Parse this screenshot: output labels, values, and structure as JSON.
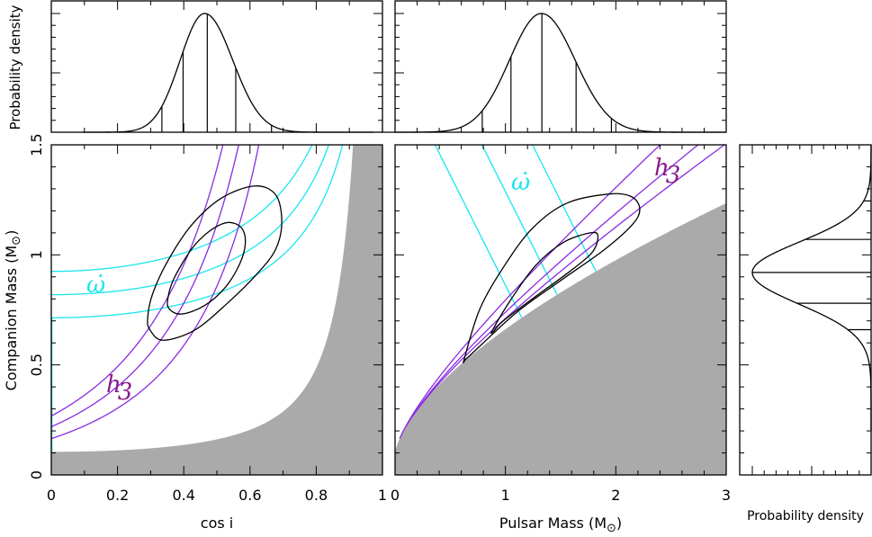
{
  "colors": {
    "omega_dot": "#19e6ef",
    "h3": "#8a2be2",
    "h3_label": "#8b1a8b",
    "excluded_region": "#aaaaaa",
    "contours": "#000000"
  },
  "labels": {
    "top_left_ylabel": "Probability density",
    "left_ylabel": "Companion Mass (M",
    "left_ylabel_sun": "⊙",
    "left_ylabel_close": ")",
    "left_xlabel": "cos i",
    "middle_xlabel": "Pulsar Mass (M",
    "middle_xlabel_sun": "⊙",
    "middle_xlabel_close": ")",
    "right_xlabel": "Probability density",
    "omega_dot": "ω̇",
    "h3": "h",
    "h3_sub": "3"
  },
  "chart_data": [
    {
      "type": "line",
      "panel": "top-left",
      "xlabel": "",
      "ylabel": "Probability density",
      "xlim": [
        0,
        1
      ],
      "distribution": {
        "peak": 0.463,
        "sigma_left": 0.074,
        "sigma_right": 0.085
      },
      "quantile_lines": [
        0.334,
        0.398,
        0.471,
        0.557,
        0.665
      ]
    },
    {
      "type": "line",
      "panel": "top-middle",
      "xlim": [
        0,
        3
      ],
      "distribution": {
        "peak": 1.326,
        "sigma_left": 0.29,
        "sigma_right": 0.306
      },
      "quantile_lines": [
        0.79,
        1.05,
        1.33,
        1.64,
        1.96
      ]
    },
    {
      "type": "line",
      "panel": "main-left",
      "xlabel": "cos i",
      "ylabel": "Companion Mass (M⊙)",
      "xlim": [
        0,
        1
      ],
      "ylim": [
        0,
        1.5
      ],
      "xticks": [
        "0",
        "0.2",
        "0.4",
        "0.6",
        "0.8",
        "1"
      ],
      "yticks": [
        "0",
        "0.5",
        "1",
        "1.5"
      ],
      "mass_function": 0.105,
      "omega_dot_total_masses": [
        2.745,
        2.287,
        1.862
      ],
      "h3_amplitudes": [
        0.268,
        0.219,
        0.165
      ],
      "contours": [
        {
          "level": "outer",
          "points": [
            [
              0.291,
              0.714
            ],
            [
              0.306,
              0.823
            ],
            [
              0.352,
              0.973
            ],
            [
              0.424,
              1.136
            ],
            [
              0.515,
              1.259
            ],
            [
              0.615,
              1.313
            ],
            [
              0.678,
              1.272
            ],
            [
              0.696,
              1.15
            ],
            [
              0.678,
              1.027
            ],
            [
              0.624,
              0.918
            ],
            [
              0.533,
              0.782
            ],
            [
              0.434,
              0.659
            ],
            [
              0.338,
              0.612
            ],
            [
              0.298,
              0.659
            ]
          ]
        },
        {
          "level": "inner",
          "points": [
            [
              0.352,
              0.802
            ],
            [
              0.37,
              0.891
            ],
            [
              0.424,
              1.027
            ],
            [
              0.479,
              1.109
            ],
            [
              0.533,
              1.147
            ],
            [
              0.574,
              1.123
            ],
            [
              0.586,
              1.054
            ],
            [
              0.569,
              0.959
            ],
            [
              0.524,
              0.85
            ],
            [
              0.461,
              0.768
            ],
            [
              0.393,
              0.731
            ],
            [
              0.356,
              0.755
            ]
          ]
        }
      ]
    },
    {
      "type": "line",
      "panel": "main-middle",
      "xlabel": "Pulsar Mass (M⊙)",
      "xlim": [
        0,
        3
      ],
      "ylim": [
        0,
        1.5
      ],
      "xticks": [
        "0",
        "1",
        "2",
        "3"
      ],
      "contours": [
        {
          "level": "outer",
          "points": [
            [
              0.629,
              0.53
            ],
            [
              0.77,
              0.756
            ],
            [
              0.994,
              0.953
            ],
            [
              1.247,
              1.122
            ],
            [
              1.557,
              1.235
            ],
            [
              1.95,
              1.277
            ],
            [
              2.147,
              1.263
            ],
            [
              2.217,
              1.206
            ],
            [
              2.147,
              1.136
            ],
            [
              1.894,
              1.023
            ],
            [
              1.5,
              0.883
            ],
            [
              1.107,
              0.741
            ],
            [
              0.77,
              0.586
            ],
            [
              0.643,
              0.527
            ]
          ]
        },
        {
          "level": "inner",
          "points": [
            [
              0.882,
              0.657
            ],
            [
              1.051,
              0.798
            ],
            [
              1.276,
              0.953
            ],
            [
              1.529,
              1.058
            ],
            [
              1.782,
              1.101
            ],
            [
              1.838,
              1.08
            ],
            [
              1.782,
              1.009
            ],
            [
              1.584,
              0.925
            ],
            [
              1.276,
              0.812
            ],
            [
              0.978,
              0.699
            ],
            [
              0.896,
              0.654
            ]
          ]
        }
      ]
    },
    {
      "type": "line",
      "panel": "right",
      "xlabel": "Probability density",
      "ylim": [
        0,
        1.5
      ],
      "orientation": "horizontal",
      "distribution": {
        "peak": 0.92,
        "sigma_low": 0.144,
        "sigma_high": 0.138
      },
      "quantile_lines": [
        0.66,
        0.78,
        0.92,
        1.07,
        1.245
      ]
    }
  ]
}
